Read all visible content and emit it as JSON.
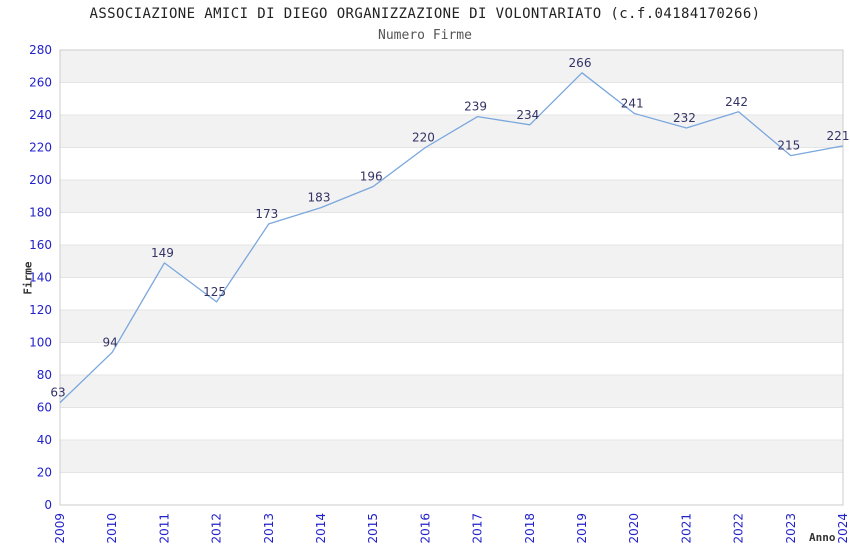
{
  "header": {
    "title": "ASSOCIAZIONE AMICI DI DIEGO ORGANIZZAZIONE DI VOLONTARIATO (c.f.04184170266)",
    "subtitle": "Numero Firme"
  },
  "chart_data": {
    "type": "line",
    "title": "ASSOCIAZIONE AMICI DI DIEGO ORGANIZZAZIONE DI VOLONTARIATO (c.f.04184170266)",
    "subtitle": "Numero Firme",
    "categories": [
      "2009",
      "2010",
      "2011",
      "2012",
      "2013",
      "2014",
      "2015",
      "2016",
      "2017",
      "2018",
      "2019",
      "2020",
      "2021",
      "2022",
      "2023",
      "2024"
    ],
    "series": [
      {
        "name": "Numero Firme",
        "values": [
          63,
          94,
          149,
          125,
          173,
          183,
          196,
          220,
          239,
          234,
          266,
          241,
          232,
          242,
          215,
          221
        ]
      }
    ],
    "xlabel": "Anno",
    "ylabel": "Firme",
    "ylim": [
      0,
      280
    ],
    "ytick_step": 20,
    "grid": "horizontal-only",
    "legend": "none",
    "data_labels_visible": true,
    "x_tick_rotation_deg": -90,
    "colors": {
      "line": "#7aa7dd",
      "tick_label": "#2222cc",
      "point_label": "#333366",
      "band": "#f2f2f2",
      "gridline": "#e4e4e4",
      "plot_border": "#cccccc",
      "title": "#222222",
      "subtitle": "#555555",
      "axis_title": "#333333",
      "background": "#ffffff"
    }
  }
}
